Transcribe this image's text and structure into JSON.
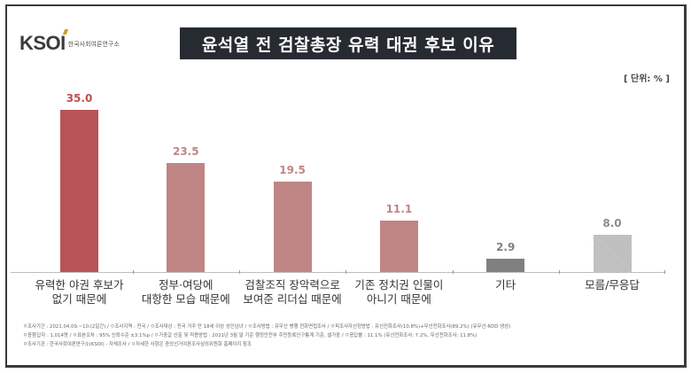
{
  "header": {
    "logo_text": "KSOI",
    "logo_subtitle": "한국사회여론연구소",
    "title": "윤석열 전 검찰총장 유력 대권 후보 이유",
    "unit_label": "[ 단위: % ]"
  },
  "chart_data": {
    "type": "bar",
    "title": "윤석열 전 검찰총장 유력 대권 후보 이유",
    "xlabel": "",
    "ylabel": "단위: %",
    "ylim": [
      0,
      40
    ],
    "grid": false,
    "legend": null,
    "categories": [
      "유력한 야권 후보가 없기 때문에",
      "정부·여당에 대항한 모습 때문에",
      "검찰조직 장악력으로 보여준 리더십 때문에",
      "기존 정치권 인물이 아니기 때문에",
      "기타",
      "모름/무응답"
    ],
    "values": [
      35.0,
      23.5,
      19.5,
      11.1,
      2.9,
      8.0
    ],
    "bars": [
      {
        "label_line1": "유력한 야권 후보가",
        "label_line2": "없기 때문에",
        "value": 35.0,
        "value_text": "35.0",
        "color": "#b85457",
        "value_color": "#c0504d"
      },
      {
        "label_line1": "정부·여당에",
        "label_line2": "대항한 모습 때문에",
        "value": 23.5,
        "value_text": "23.5",
        "color": "#c08585",
        "value_color": "#c08585"
      },
      {
        "label_line1": "검찰조직 장악력으로",
        "label_line2": "보여준 리더십 때문에",
        "value": 19.5,
        "value_text": "19.5",
        "color": "#c08585",
        "value_color": "#c08585"
      },
      {
        "label_line1": "기존 정치권 인물이",
        "label_line2": "아니기 때문에",
        "value": 11.1,
        "value_text": "11.1",
        "color": "#c08585",
        "value_color": "#c08585"
      },
      {
        "label_line1": "기타",
        "label_line2": "",
        "value": 2.9,
        "value_text": "2.9",
        "color": "#808080",
        "value_color": "#808080"
      },
      {
        "label_line1": "모름/무응답",
        "label_line2": "",
        "value": 8.0,
        "value_text": "8.0",
        "color": "#bfbfbf",
        "value_color": "#8c8c8c",
        "pattern": true
      }
    ]
  },
  "footnotes": [
    "ㅇ조사기간 : 2021.04.09.~10.(2일간)  /  ㅇ조사지역 : 전국  /  ㅇ조사대상 : 전국 거주 만 18세 이상 성인남녀  /  ㅇ조사방법 : 유무선 병행 전화면접조사  /  ㅇ피조사자선정방법 : 유선전화조사(10.8%)+무선전화조사(89.2%) (유무선-RDD 생성)",
    "ㅇ응答답자 : 1,014명  /  ㅇ표본오차 : 95% 신뢰수준 ±3.1%p  /  ㅇ가중값 산출 및 적용방법 : 2021년 3월 말 기준 행정안전부 주민등록인구통계 기준, 셀가중  /  ㅇ응답률 : 11.1% (유선전화조사: 7.2%, 무선전화조사: 11.8%)",
    "ㅇ조사기관 : 한국사회여론연구소(KSOI) - 자체조사  /  ㅇ자세한 사항은 중앙선거여론조사심의위원회 홈페이지 참조"
  ]
}
